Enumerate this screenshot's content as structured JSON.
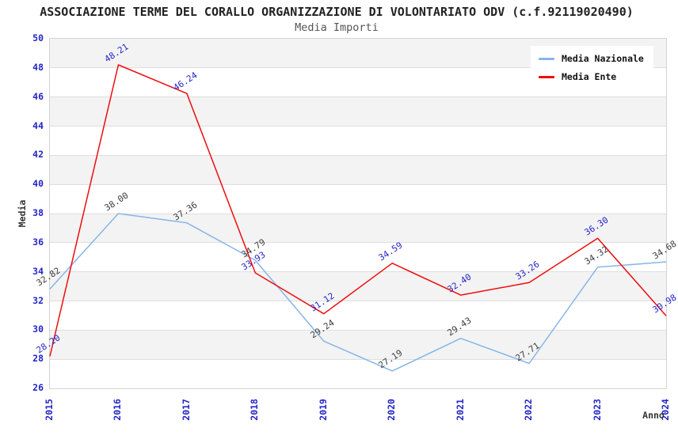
{
  "chart_data": {
    "type": "line",
    "title": "ASSOCIAZIONE TERME DEL CORALLO ORGANIZZAZIONE DI VOLONTARIATO ODV (c.f.92119020490)",
    "subtitle": "Media Importi",
    "xlabel": "Anno",
    "ylabel": "Media",
    "x": [
      "2015",
      "2016",
      "2017",
      "2018",
      "2019",
      "2020",
      "2021",
      "2022",
      "2023",
      "2024"
    ],
    "series": [
      {
        "name": "Media Nazionale",
        "color": "#85b6e8",
        "label_color": "#3c3c3c",
        "values": [
          32.82,
          38.0,
          37.36,
          34.79,
          29.24,
          27.19,
          29.43,
          27.71,
          34.32,
          34.68
        ]
      },
      {
        "name": "Media Ente",
        "color": "#ee0d0d",
        "label_color": "#2424c8",
        "values": [
          28.2,
          48.21,
          46.24,
          33.93,
          31.12,
          34.59,
          32.4,
          33.26,
          36.3,
          30.98
        ]
      }
    ],
    "ylim": [
      26,
      50
    ],
    "ytick_step": 2,
    "grid": true,
    "band_fill": true,
    "legend_position": "top-right",
    "colors": {
      "tick_text": "#2424c8",
      "band_gray": "#f3f3f3",
      "gridline": "#dedede",
      "plot_border": "#d2d2d2"
    }
  }
}
